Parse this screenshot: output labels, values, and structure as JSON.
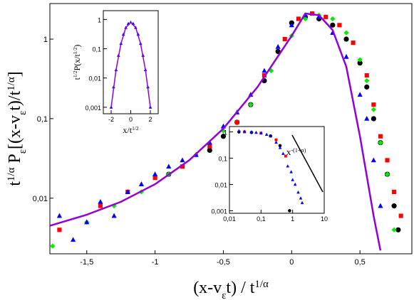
{
  "chart_data": [
    {
      "type": "scatter",
      "xlog": false,
      "ylog": true,
      "xlabel": [
        {
          "text": "(x-v",
          "pos": "base"
        },
        {
          "text": "ε",
          "pos": "sub"
        },
        {
          "text": "t) / t",
          "pos": "base"
        },
        {
          "text": "1/α",
          "pos": "sup"
        }
      ],
      "ylabel": [
        {
          "text": "t",
          "pos": "base"
        },
        {
          "text": "1/α",
          "pos": "sup"
        },
        {
          "text": " P",
          "pos": "base"
        },
        {
          "text": "ε",
          "pos": "sub"
        },
        {
          "text": "[(x-v",
          "pos": "base"
        },
        {
          "text": "ε",
          "pos": "sub"
        },
        {
          "text": "t)/t",
          "pos": "base"
        },
        {
          "text": "1/α",
          "pos": "sup"
        },
        {
          "text": "]",
          "pos": "base"
        }
      ],
      "xlim": [
        -1.77,
        0.88
      ],
      "ylim": [
        0.002,
        2.8
      ],
      "xticks": [
        {
          "value": -1.5,
          "label": "-1,5"
        },
        -1,
        {
          "value": -0.5,
          "label": "-0,5"
        },
        0,
        {
          "value": 0.5,
          "label": "0,5"
        }
      ],
      "yticks": [
        {
          "value": 0.01,
          "label": "0,01"
        },
        {
          "value": 0.1,
          "label": "0,1"
        },
        1
      ],
      "series": [
        {
          "marker": "circle",
          "color": "#000000",
          "x": [
            -0.9,
            -0.6,
            -0.5,
            -0.4,
            -0.3,
            -0.2,
            -0.1,
            0,
            0.1,
            0.2,
            0.3,
            0.4,
            0.5,
            0.55,
            0.6,
            0.65,
            0.7,
            0.75,
            0.78
          ],
          "values": [
            0.02,
            0.04,
            0.06,
            0.09,
            0.15,
            0.3,
            0.7,
            1.6,
            1.9,
            1.8,
            1.5,
            1.0,
            0.5,
            0.25,
            0.1,
            0.05,
            0.02,
            0.008,
            0.004
          ]
        },
        {
          "marker": "square",
          "color": "#ff0000",
          "x": [
            -1.7,
            -1.4,
            -1.2,
            -1.0,
            -0.8,
            -0.6,
            -0.4,
            -0.2,
            -0.05,
            0.05,
            0.15,
            0.25,
            0.35,
            0.45,
            0.55,
            0.6,
            0.65,
            0.7,
            0.75,
            0.8
          ],
          "values": [
            0.004,
            0.008,
            0.012,
            0.018,
            0.025,
            0.045,
            0.09,
            0.35,
            1.0,
            1.8,
            2.1,
            1.9,
            1.5,
            0.9,
            0.35,
            0.15,
            0.06,
            0.03,
            0.012,
            0.006
          ]
        },
        {
          "marker": "diamond",
          "color": "#00ee00",
          "x": [
            -1.75,
            -1.5,
            -1.3,
            -1.1,
            -0.9,
            -0.7,
            -0.5,
            -0.3,
            -0.15,
            0,
            0.1,
            0.2,
            0.3,
            0.4,
            0.5,
            0.55,
            0.6,
            0.65,
            0.7,
            0.75
          ],
          "values": [
            0.0025,
            0.005,
            0.008,
            0.012,
            0.02,
            0.035,
            0.07,
            0.15,
            0.4,
            1.1,
            1.8,
            2.0,
            1.8,
            1.2,
            0.55,
            0.3,
            0.13,
            0.05,
            0.02,
            0.004
          ]
        },
        {
          "marker": "triangle",
          "color": "#0000ff",
          "x": [
            -1.7,
            -1.6,
            -1.5,
            -1.4,
            -1.3,
            -1.2,
            -1.1,
            -1.0,
            -0.9,
            -0.8,
            -0.7,
            -0.6,
            -0.5,
            -0.4,
            -0.3,
            -0.2,
            -0.1,
            0,
            0.1,
            0.2,
            0.3,
            0.4,
            0.5,
            0.55,
            0.6,
            0.65
          ],
          "values": [
            0.006,
            0.003,
            0.005,
            0.009,
            0.006,
            0.012,
            0.015,
            0.02,
            0.025,
            0.03,
            0.035,
            0.05,
            0.08,
            0.12,
            0.2,
            0.4,
            0.8,
            1.5,
            2.0,
            1.9,
            1.2,
            0.6,
            0.2,
            0.1,
            0.03,
            0.008
          ]
        }
      ],
      "curve": {
        "color": "#9400d3",
        "x": [
          -1.77,
          -1.5,
          -1.25,
          -1.0,
          -0.75,
          -0.5,
          -0.25,
          0,
          0.1,
          0.2,
          0.3,
          0.4,
          0.5,
          0.6,
          0.65
        ],
        "values": [
          0.0045,
          0.0062,
          0.009,
          0.015,
          0.03,
          0.075,
          0.25,
          1.1,
          2.1,
          2.0,
          1.3,
          0.45,
          0.06,
          0.006,
          0.0022
        ]
      }
    },
    {
      "type": "scatter",
      "xlog": false,
      "ylog": true,
      "xlabel": [
        {
          "text": "x/t",
          "pos": "base"
        },
        {
          "text": "1/2",
          "pos": "sup"
        }
      ],
      "ylabel": [
        {
          "text": "t",
          "pos": "base"
        },
        {
          "text": "1/2",
          "pos": "sup"
        },
        {
          "text": "P(x/t",
          "pos": "base"
        },
        {
          "text": "1/2",
          "pos": "sup"
        },
        {
          "text": ")",
          "pos": "base"
        }
      ],
      "xlim": [
        -2.8,
        2.8
      ],
      "ylim": [
        0.0006,
        2
      ],
      "xticks": [
        -2,
        0,
        2
      ],
      "yticks": [
        {
          "value": 0.001,
          "label": "0,001"
        },
        {
          "value": 0.01,
          "label": "0,01"
        },
        {
          "value": 0.1,
          "label": "0,1"
        },
        1
      ],
      "series": [
        {
          "marker": "triangle",
          "color": "#0000ff",
          "x": [
            -2,
            -1.75,
            -1.5,
            -1.25,
            -1,
            -0.75,
            -0.5,
            -0.25,
            0,
            0.25,
            0.5,
            0.75,
            1,
            1.25,
            1.5,
            1.75,
            2
          ],
          "values": [
            0.001,
            0.0049,
            0.019,
            0.059,
            0.15,
            0.31,
            0.53,
            0.72,
            0.8,
            0.72,
            0.53,
            0.31,
            0.15,
            0.059,
            0.019,
            0.0049,
            0.001
          ]
        }
      ],
      "curve": {
        "color": "#9400d3",
        "x": [
          -2,
          -1.5,
          -1,
          -0.5,
          0,
          0.5,
          1,
          1.5,
          2
        ],
        "values": [
          0.001,
          0.019,
          0.15,
          0.53,
          0.8,
          0.53,
          0.15,
          0.019,
          0.001
        ]
      }
    },
    {
      "type": "scatter",
      "xlog": true,
      "ylog": true,
      "annotation": [
        {
          "text": "x",
          "pos": "base"
        },
        {
          "text": "-(1+α)",
          "pos": "sup"
        }
      ],
      "xlim": [
        0.01,
        10
      ],
      "ylim": [
        0.0008,
        1.6
      ],
      "xticks": [
        {
          "value": 0.01,
          "label": "0,01"
        },
        {
          "value": 0.1,
          "label": "0,1"
        },
        1,
        10
      ],
      "yticks": [
        {
          "value": 0.001,
          "label": "0,001"
        },
        {
          "value": 0.01,
          "label": "0,01"
        },
        {
          "value": 0.1,
          "label": "0,1"
        },
        1
      ],
      "series": [
        {
          "marker": "circle",
          "color": "#000000",
          "x": [
            0.02,
            0.05,
            0.2,
            0.4,
            0.8
          ],
          "values": [
            1.0,
            0.95,
            0.7,
            0.3,
            0.001
          ]
        },
        {
          "marker": "square",
          "color": "#ff0000",
          "x": [
            0.03,
            0.1,
            0.3,
            0.6
          ],
          "values": [
            1.0,
            0.9,
            0.5,
            0.12
          ]
        },
        {
          "marker": "triangle",
          "color": "#0000ff",
          "x": [
            0.02,
            0.03,
            0.05,
            0.07,
            0.1,
            0.15,
            0.2,
            0.3,
            0.4,
            0.5,
            0.7,
            0.9,
            1,
            1.2,
            1.5,
            1.8,
            2
          ],
          "values": [
            1.1,
            1.05,
            1.0,
            0.95,
            0.9,
            0.8,
            0.7,
            0.4,
            0.25,
            0.15,
            0.05,
            0.03,
            0.015,
            0.01,
            0.005,
            0.003,
            0.002
          ]
        }
      ]
    }
  ]
}
